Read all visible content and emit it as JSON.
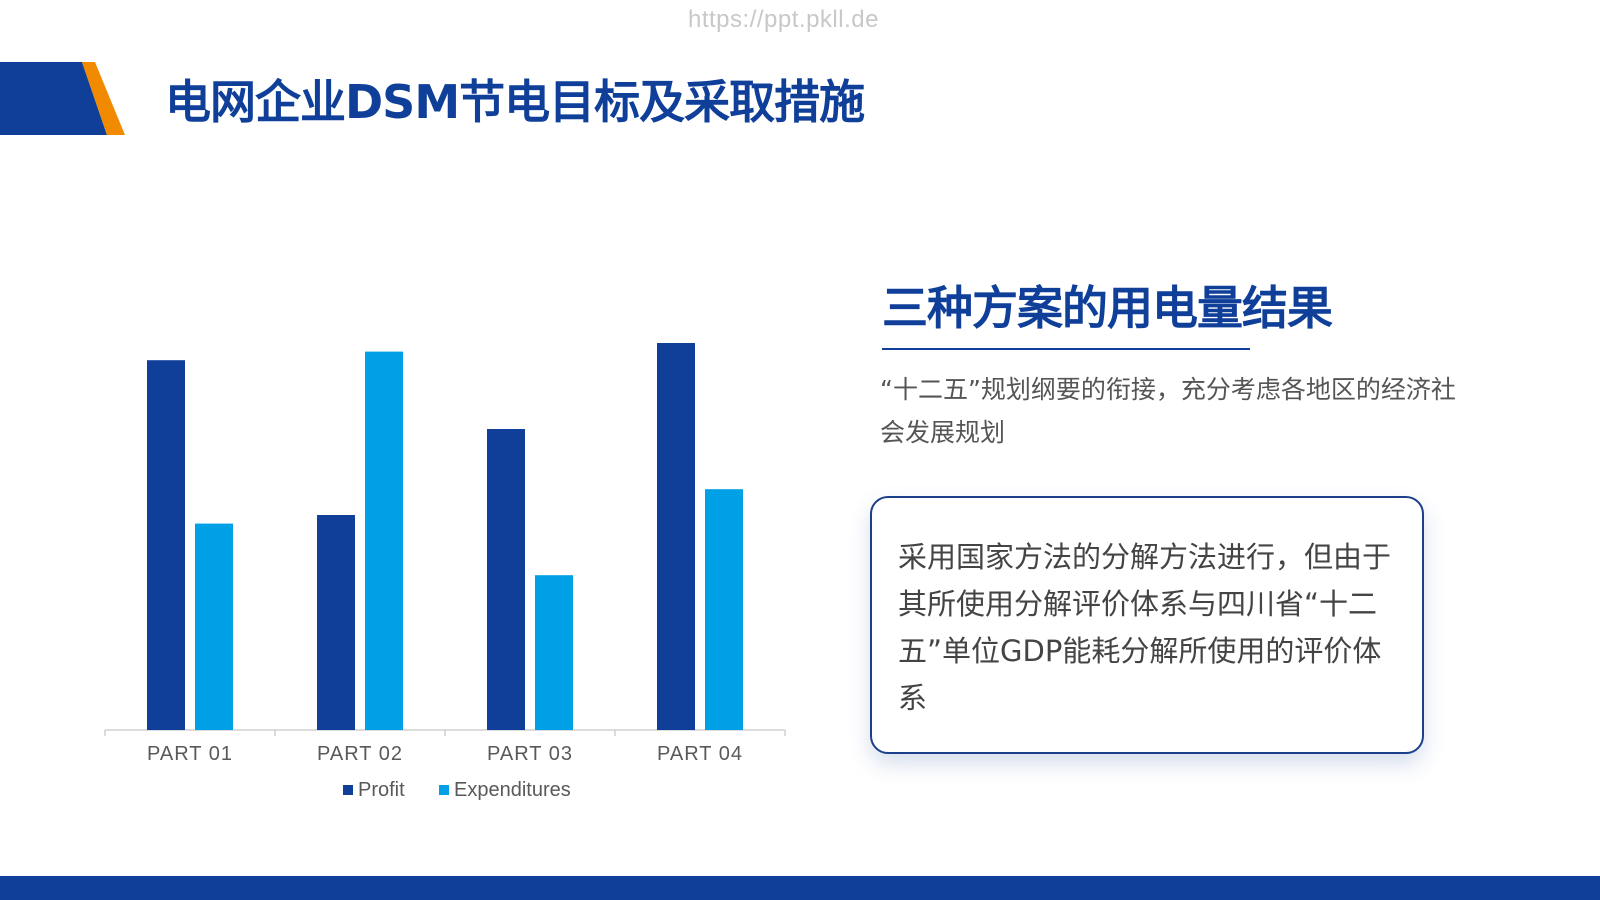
{
  "watermark": "https://ppt.pkll.de",
  "header": {
    "title": "电网企业DSM节电目标及采取措施"
  },
  "colors": {
    "brand_blue": "#0f3f99",
    "light_blue": "#00a0e6",
    "accent_orange": "#f28a00"
  },
  "side": {
    "heading": "三种方案的用电量结果",
    "intro": "“十二五”规划纲要的衔接，充分考虑各地区的经济社会发展规划",
    "card_text": "采用国家方法的分解方法进行，但由于其所使用分解评价体系与四川省“十二五”单位GDP能耗分解所使用的评价体系"
  },
  "chart_data": {
    "type": "bar",
    "categories": [
      "PART 01",
      "PART 02",
      "PART 03",
      "PART 04"
    ],
    "series": [
      {
        "name": "Profit",
        "values": [
          4.3,
          2.5,
          3.5,
          4.5
        ],
        "color": "#0f3f99"
      },
      {
        "name": "Expenditures",
        "values": [
          2.4,
          4.4,
          1.8,
          2.8
        ],
        "color": "#00a0e6"
      }
    ],
    "ylim": [
      0,
      5
    ],
    "grid": false,
    "legend_position": "bottom"
  }
}
